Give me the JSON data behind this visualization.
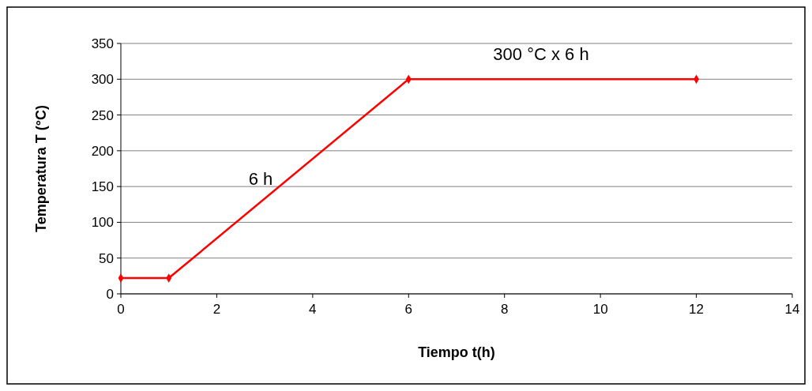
{
  "chart_data": {
    "type": "line",
    "xlabel": "Tiempo t(h)",
    "ylabel": "Temperatura T (°C)",
    "x": [
      0,
      1,
      6,
      12
    ],
    "series": [
      {
        "color": "#ff0000",
        "values": [
          22,
          22,
          300,
          300
        ]
      }
    ],
    "xlim": [
      0,
      14
    ],
    "xticks": [
      0,
      2,
      4,
      6,
      8,
      10,
      12,
      14
    ],
    "ylim": [
      0,
      350
    ],
    "yticks": [
      0,
      50,
      100,
      150,
      200,
      250,
      300,
      350
    ],
    "grid": "y",
    "marker": "diamond",
    "line_style": "solid",
    "annotations": [
      "6 h",
      "300 °C x 6 h"
    ]
  }
}
